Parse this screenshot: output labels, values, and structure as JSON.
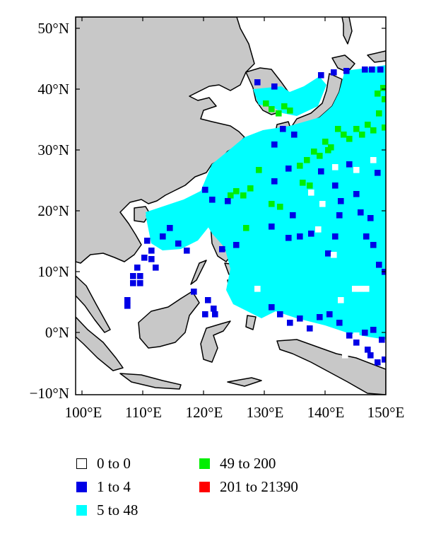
{
  "map": {
    "lat_labels": [
      "50°N",
      "40°N",
      "30°N",
      "20°N",
      "10°N",
      "0°N",
      "−10°N"
    ],
    "lon_labels": [
      "100°E",
      "110°E",
      "120°E",
      "130°E",
      "140°E",
      "150°E"
    ],
    "extent": {
      "lon_min": 98,
      "lon_max": 150,
      "lat_min": -10,
      "lat_max": 52
    },
    "colors": {
      "land": "#c8c8c8",
      "coast": "#000000",
      "ocean": "#ffffff",
      "bin_0": "#ffffff",
      "bin_1_4": "#0000e6",
      "bin_5_48": "#00ffff",
      "bin_49_200": "#00ee00",
      "bin_201_21390": "#ff0000"
    }
  },
  "legend": {
    "items": [
      {
        "label": "0 to 0",
        "color": "#ffffff",
        "border": "#000000"
      },
      {
        "label": "1 to 4",
        "color": "#0000e6",
        "border": "#0000e6"
      },
      {
        "label": "5 to 48",
        "color": "#00ffff",
        "border": "#00ffff"
      },
      {
        "label": "49 to 200",
        "color": "#00ee00",
        "border": "#00ee00"
      },
      {
        "label": "201 to 21390",
        "color": "#ff0000",
        "border": "#ff0000"
      }
    ]
  }
}
